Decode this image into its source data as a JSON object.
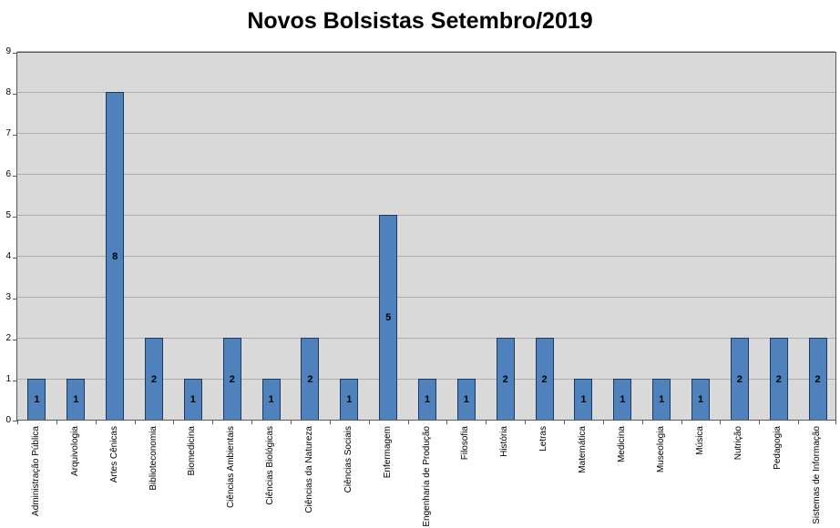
{
  "title": "Novos Bolsistas Setembro/2019",
  "chart_data": {
    "type": "bar",
    "title": "Novos Bolsistas Setembro/2019",
    "xlabel": "",
    "ylabel": "",
    "categories": [
      "Administração Pública",
      "Arquivologia",
      "Artes Cênicas",
      "Biblioteconomia",
      "Biomedicina",
      "Ciências Ambientais",
      "Ciências Biológicas",
      "Ciências da Natureza",
      "Ciências Sociais",
      "Enfermagem",
      "Engenharia de Produção",
      "Filosofia",
      "História",
      "Letras",
      "Matemática",
      "Medicina",
      "Museologia",
      "Música",
      "Nutrição",
      "Pedagogia",
      "Sistemas de Informação"
    ],
    "values": [
      1,
      1,
      8,
      2,
      1,
      2,
      1,
      2,
      1,
      5,
      1,
      1,
      2,
      2,
      1,
      1,
      1,
      1,
      2,
      2,
      2
    ],
    "data_labels": true,
    "ylim": [
      0,
      9
    ],
    "ytick_interval": 1,
    "yticks": [
      0,
      1,
      2,
      3,
      4,
      5,
      6,
      7,
      8,
      9
    ],
    "grid": true,
    "legend": "none",
    "colors": {
      "bar_fill": "#4f81bd",
      "bar_border": "#1c3a5f",
      "plot_background": "#d9d9d9",
      "gridline": "#aeaeae",
      "axis": "#5a5a5a",
      "title_text": "#000000",
      "label_text": "#000000"
    }
  }
}
